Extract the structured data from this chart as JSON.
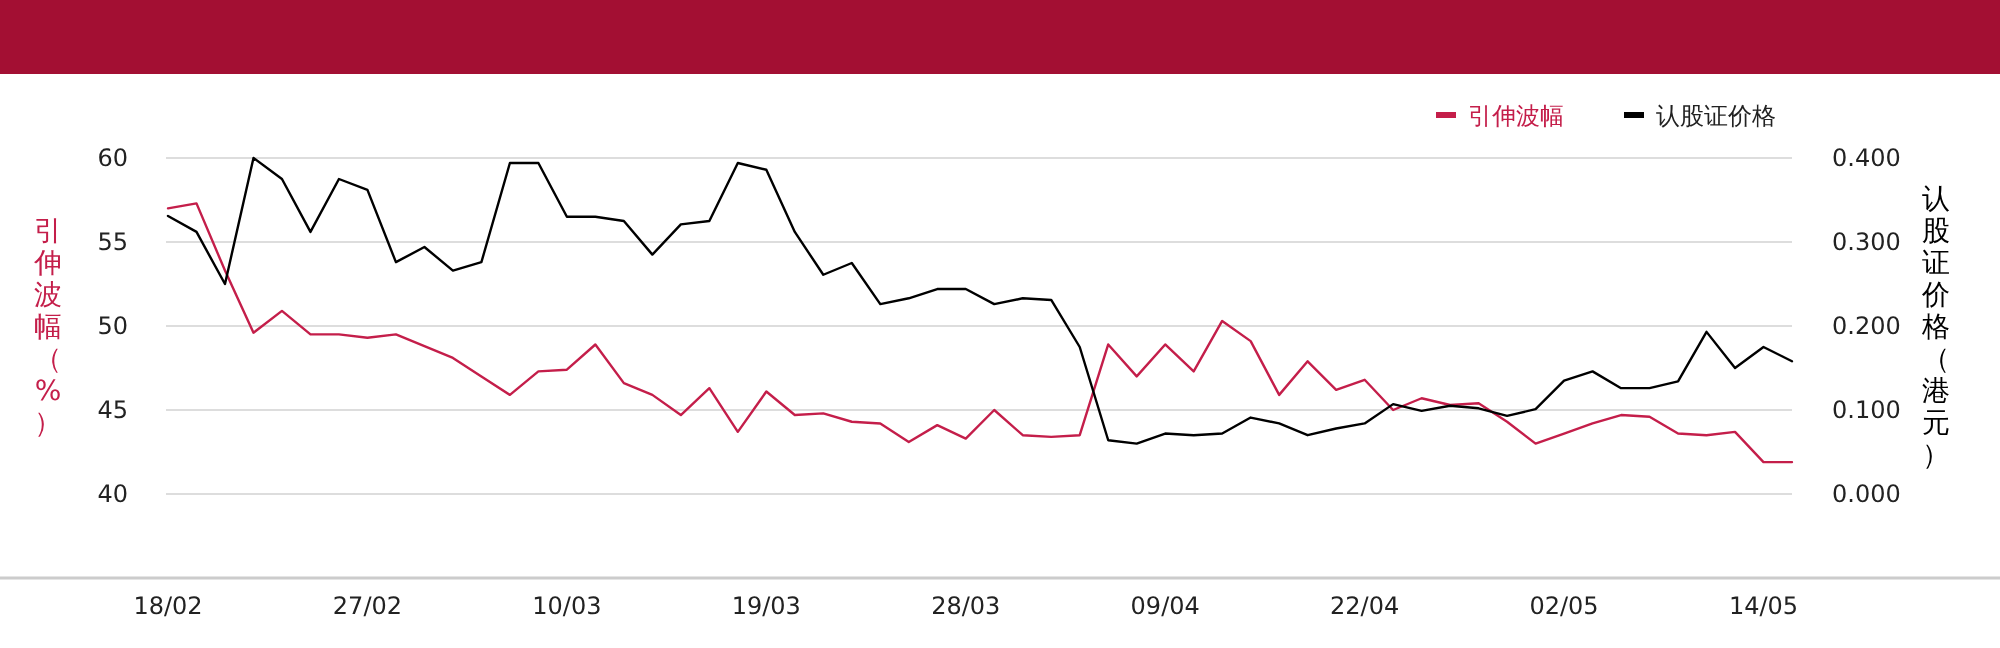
{
  "chart_data": {
    "type": "line",
    "categories": [
      "18/02",
      null,
      null,
      null,
      null,
      null,
      null,
      "27/02",
      null,
      null,
      null,
      null,
      null,
      null,
      "10/03",
      null,
      null,
      null,
      null,
      null,
      null,
      "19/03",
      null,
      null,
      null,
      null,
      null,
      null,
      "28/03",
      null,
      null,
      null,
      null,
      null,
      null,
      "09/04",
      null,
      null,
      null,
      null,
      null,
      null,
      "22/04",
      null,
      null,
      null,
      null,
      null,
      null,
      "02/05",
      null,
      null,
      null,
      null,
      null,
      null,
      "14/05",
      null
    ],
    "series": [
      {
        "name": "引伸波幅",
        "color": "#c41e4a",
        "values": [
          57.0,
          57.3,
          53.3,
          49.6,
          50.9,
          49.5,
          49.5,
          49.3,
          49.5,
          48.8,
          48.1,
          47.0,
          45.9,
          47.3,
          47.4,
          48.9,
          46.6,
          45.9,
          44.7,
          46.3,
          43.7,
          46.1,
          44.7,
          44.8,
          44.3,
          44.2,
          43.1,
          44.1,
          43.3,
          45.0,
          43.5,
          43.4,
          43.5,
          48.9,
          47.0,
          48.9,
          47.3,
          50.3,
          49.1,
          45.9,
          47.9,
          46.2,
          46.8,
          45.0,
          45.7,
          45.3,
          45.4,
          44.3,
          43.0,
          43.6,
          44.2,
          44.7,
          44.6,
          43.6,
          43.5,
          43.7,
          41.9,
          41.9
        ]
      },
      {
        "name": "认股证价格",
        "color": "#000000",
        "axis": "y2",
        "values": [
          0.331,
          0.312,
          0.25,
          0.4,
          0.375,
          0.312,
          0.375,
          0.362,
          0.276,
          0.294,
          0.266,
          0.276,
          0.394,
          0.394,
          0.33,
          0.33,
          0.325,
          0.285,
          0.321,
          0.325,
          0.394,
          0.386,
          0.312,
          0.261,
          0.275,
          0.226,
          0.233,
          0.244,
          0.244,
          0.226,
          0.233,
          0.231,
          0.175,
          0.064,
          0.06,
          0.072,
          0.07,
          0.072,
          0.091,
          0.084,
          0.07,
          0.078,
          0.084,
          0.107,
          0.099,
          0.105,
          0.102,
          0.093,
          0.101,
          0.135,
          0.146,
          0.126,
          0.126,
          0.134,
          0.193,
          0.15,
          0.175,
          0.158
        ]
      }
    ],
    "ylabel": "引伸波幅（%）",
    "y2label": "认股证价格（港元）",
    "ylim": [
      35,
      60
    ],
    "yticks": [
      40,
      45,
      50,
      55,
      60
    ],
    "y2lim": [
      -0.1,
      0.4
    ],
    "y2ticks": [
      {
        "value": 0,
        "label": "0.000"
      },
      {
        "value": 0.1,
        "label": "0.100"
      },
      {
        "value": 0.2,
        "label": "0.200"
      },
      {
        "value": 0.3,
        "label": "0.300"
      },
      {
        "value": 0.4,
        "label": "0.400"
      }
    ],
    "grid": "y",
    "legend": "top right",
    "marker": "none",
    "line_style": "solid"
  }
}
